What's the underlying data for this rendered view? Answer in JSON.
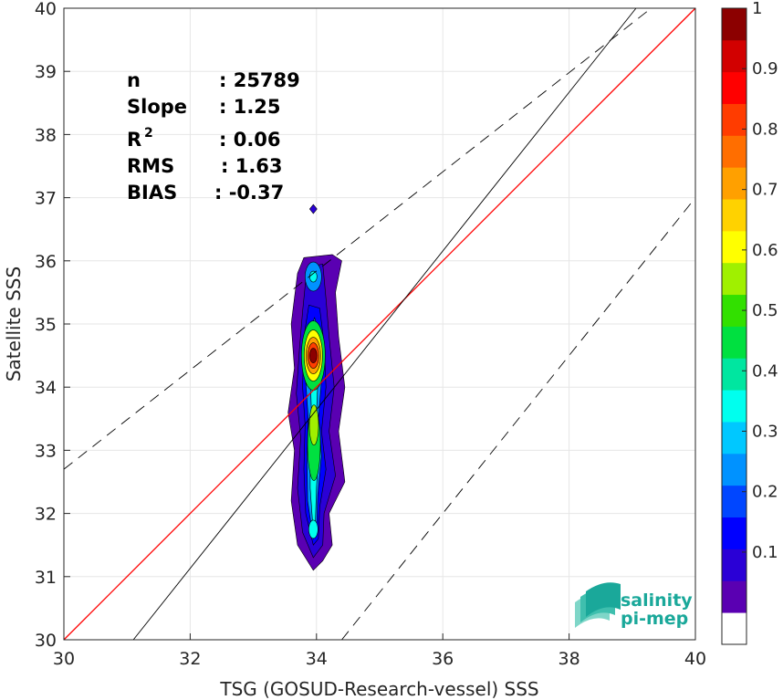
{
  "chart_data": {
    "type": "contour",
    "xlabel": "TSG (GOSUD-Research-vessel) SSS",
    "ylabel": "Satellite SSS",
    "xlim": [
      30,
      40
    ],
    "ylim": [
      30,
      40
    ],
    "x_ticks": [
      "30",
      "32",
      "34",
      "36",
      "38",
      "40"
    ],
    "y_ticks": [
      "30",
      "31",
      "32",
      "33",
      "34",
      "35",
      "36",
      "37",
      "38",
      "39",
      "40"
    ],
    "grid": true,
    "stats": [
      {
        "label": "n",
        "value": ": 25789"
      },
      {
        "label": "Slope",
        "value": ": 1.25"
      },
      {
        "label": "R",
        "sup": "2",
        "value": ": 0.06"
      },
      {
        "label": "RMS",
        "value": ": 1.63"
      },
      {
        "label": "BIAS",
        "value": ": -0.37"
      }
    ],
    "lines": [
      {
        "kind": "one-to-one",
        "color": "#ff0000",
        "x": [
          30,
          40
        ],
        "y": [
          30,
          40
        ]
      },
      {
        "kind": "regression",
        "color": "#000000",
        "x": [
          31.1,
          39.06
        ],
        "y": [
          30,
          40
        ]
      },
      {
        "kind": "upper-bound",
        "color": "#000000",
        "dash": true,
        "x": [
          30,
          39.3
        ],
        "y": [
          32.7,
          40
        ]
      },
      {
        "kind": "lower-bound",
        "color": "#000000",
        "dash": true,
        "x": [
          34.4,
          40
        ],
        "y": [
          30,
          37.0
        ]
      }
    ],
    "density_peak": {
      "x": 33.95,
      "y": 34.5
    },
    "outlier_point": {
      "x": 33.95,
      "y": 36.82
    },
    "colorbar": {
      "range": [
        0,
        1
      ],
      "ticks": [
        "0.1",
        "0.2",
        "0.3",
        "0.4",
        "0.5",
        "0.6",
        "0.7",
        "0.8",
        "0.9",
        "1"
      ],
      "colors": [
        "#ffffff",
        "#5a00b2",
        "#2a00d6",
        "#0000ff",
        "#0046ff",
        "#0092ff",
        "#00c8ff",
        "#00ffee",
        "#00e6a0",
        "#00e040",
        "#32e000",
        "#a0f000",
        "#ffff00",
        "#ffd200",
        "#ffa000",
        "#ff6e00",
        "#ff3c00",
        "#ff0000",
        "#d20000",
        "#8c0000"
      ]
    }
  },
  "logo": {
    "line1": "salinity",
    "line2": "pi-mep"
  }
}
